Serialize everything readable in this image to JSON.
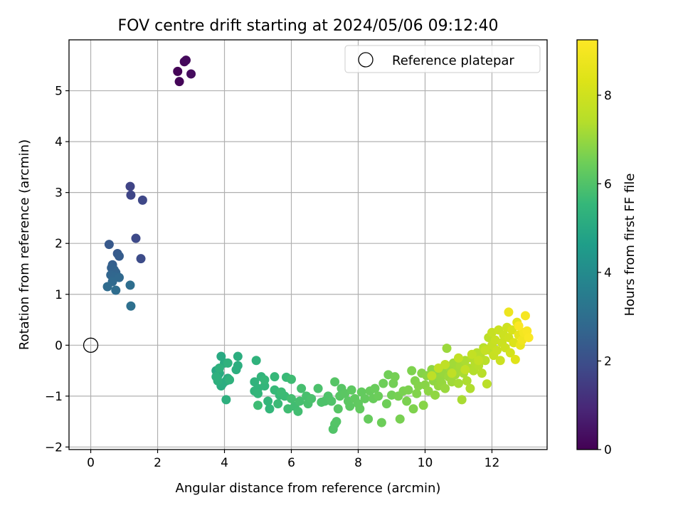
{
  "chart_data": {
    "type": "scatter",
    "title": "FOV centre drift starting at 2024/05/06 09:12:40",
    "xlabel": "Angular distance from reference (arcmin)",
    "ylabel": "Rotation from reference (arcmin)",
    "xlim": [
      -0.65,
      13.65
    ],
    "ylim": [
      -2.05,
      6.0
    ],
    "xticks": [
      0,
      2,
      4,
      6,
      8,
      10,
      12
    ],
    "xtick_labels": [
      "0",
      "2",
      "4",
      "6",
      "8",
      "10",
      "12"
    ],
    "yticks": [
      -2,
      -1,
      0,
      1,
      2,
      3,
      4,
      5
    ],
    "ytick_labels": [
      "−2",
      "−1",
      "0",
      "1",
      "2",
      "3",
      "4",
      "5"
    ],
    "grid": true,
    "legend_position": "top-right",
    "legend": [
      {
        "label": "Reference platepar",
        "marker": "open-circle"
      }
    ],
    "reference_point": {
      "x": 0,
      "y": 0
    },
    "colorbar": {
      "label": "Hours from first FF file",
      "colormap": "viridis",
      "range": [
        0,
        9.25
      ],
      "ticks": [
        0,
        2,
        4,
        6,
        8
      ],
      "tick_labels": [
        "0",
        "2",
        "4",
        "6",
        "8"
      ]
    },
    "points": [
      [
        2.6,
        5.38,
        0.05
      ],
      [
        2.65,
        5.18,
        0.1
      ],
      [
        2.8,
        5.57,
        0.15
      ],
      [
        2.85,
        5.6,
        0.2
      ],
      [
        3.0,
        5.33,
        0.25
      ],
      [
        1.18,
        3.12,
        1.7
      ],
      [
        1.2,
        2.95,
        1.75
      ],
      [
        1.55,
        2.85,
        1.8
      ],
      [
        1.35,
        2.1,
        1.85
      ],
      [
        1.5,
        1.7,
        1.9
      ],
      [
        0.55,
        1.98,
        2.3
      ],
      [
        0.8,
        1.8,
        2.35
      ],
      [
        0.85,
        1.75,
        2.4
      ],
      [
        0.65,
        1.58,
        2.5
      ],
      [
        0.62,
        1.52,
        2.55
      ],
      [
        0.7,
        1.48,
        2.6
      ],
      [
        0.75,
        1.43,
        2.65
      ],
      [
        0.6,
        1.38,
        2.7
      ],
      [
        0.72,
        1.34,
        2.75
      ],
      [
        0.85,
        1.33,
        2.8
      ],
      [
        0.65,
        1.25,
        2.85
      ],
      [
        0.5,
        1.15,
        2.9
      ],
      [
        0.75,
        1.08,
        2.95
      ],
      [
        1.18,
        1.18,
        3.0
      ],
      [
        1.2,
        0.77,
        3.05
      ],
      [
        3.75,
        -0.5,
        5.0
      ],
      [
        3.8,
        -0.6,
        5.02
      ],
      [
        3.9,
        -0.22,
        5.04
      ],
      [
        3.85,
        -0.55,
        5.06
      ],
      [
        4.0,
        -0.35,
        5.08
      ],
      [
        4.05,
        -0.7,
        5.1
      ],
      [
        4.1,
        -0.65,
        5.12
      ],
      [
        3.9,
        -0.8,
        5.14
      ],
      [
        3.95,
        -0.75,
        5.16
      ],
      [
        4.4,
        -0.22,
        5.18
      ],
      [
        4.4,
        -0.4,
        5.2
      ],
      [
        4.35,
        -0.48,
        5.22
      ],
      [
        4.05,
        -1.07,
        5.24
      ],
      [
        3.8,
        -0.7,
        5.26
      ],
      [
        3.75,
        -0.62,
        5.28
      ],
      [
        3.85,
        -0.45,
        5.3
      ],
      [
        4.1,
        -0.35,
        5.32
      ],
      [
        4.15,
        -0.68,
        5.34
      ],
      [
        4.95,
        -0.3,
        5.36
      ],
      [
        4.9,
        -0.72,
        5.38
      ],
      [
        5.0,
        -0.85,
        5.4
      ],
      [
        4.9,
        -0.9,
        5.42
      ],
      [
        5.1,
        -0.62,
        5.44
      ],
      [
        5.2,
        -0.8,
        5.46
      ],
      [
        5.0,
        -0.95,
        5.48
      ],
      [
        5.3,
        -1.1,
        5.5
      ],
      [
        5.35,
        -1.25,
        5.52
      ],
      [
        5.2,
        -0.68,
        5.54
      ],
      [
        5.5,
        -0.62,
        5.56
      ],
      [
        5.5,
        -0.88,
        5.58
      ],
      [
        5.65,
        -0.98,
        5.6
      ],
      [
        5.85,
        -0.63,
        5.62
      ],
      [
        5.6,
        -1.15,
        5.64
      ],
      [
        5.8,
        -1.0,
        5.66
      ],
      [
        5.7,
        -0.92,
        5.68
      ],
      [
        5.0,
        -1.18,
        5.7
      ],
      [
        6.0,
        -0.67,
        5.72
      ],
      [
        5.9,
        -1.25,
        5.74
      ],
      [
        6.1,
        -1.2,
        5.76
      ],
      [
        6.2,
        -1.3,
        5.78
      ],
      [
        6.0,
        -1.05,
        5.8
      ],
      [
        6.3,
        -0.85,
        5.82
      ],
      [
        6.25,
        -1.1,
        5.84
      ],
      [
        6.45,
        -1.0,
        5.86
      ],
      [
        6.5,
        -1.15,
        5.88
      ],
      [
        6.6,
        -1.05,
        5.9
      ],
      [
        6.8,
        -0.85,
        5.92
      ],
      [
        6.9,
        -1.12,
        5.94
      ],
      [
        7.0,
        -1.1,
        5.96
      ],
      [
        7.1,
        -1.0,
        5.98
      ],
      [
        7.2,
        -1.1,
        6.0
      ],
      [
        7.25,
        -1.65,
        6.02
      ],
      [
        7.3,
        -1.55,
        6.04
      ],
      [
        7.35,
        -1.5,
        6.06
      ],
      [
        7.3,
        -0.72,
        6.08
      ],
      [
        7.4,
        -1.25,
        6.1
      ],
      [
        7.5,
        -0.85,
        6.12
      ],
      [
        7.45,
        -1.0,
        6.14
      ],
      [
        7.6,
        -0.95,
        6.16
      ],
      [
        7.7,
        -1.1,
        6.18
      ],
      [
        7.75,
        -1.2,
        6.2
      ],
      [
        7.8,
        -0.88,
        6.22
      ],
      [
        7.9,
        -1.05,
        6.24
      ],
      [
        8.0,
        -1.15,
        6.26
      ],
      [
        8.05,
        -1.25,
        6.28
      ],
      [
        8.1,
        -0.92,
        6.3
      ],
      [
        8.2,
        -1.05,
        6.32
      ],
      [
        8.3,
        -1.45,
        6.34
      ],
      [
        8.35,
        -0.9,
        6.36
      ],
      [
        8.45,
        -1.05,
        6.38
      ],
      [
        8.5,
        -0.85,
        6.4
      ],
      [
        8.6,
        -1.0,
        6.42
      ],
      [
        8.7,
        -1.52,
        6.44
      ],
      [
        8.75,
        -0.75,
        6.46
      ],
      [
        8.85,
        -1.15,
        6.48
      ],
      [
        8.9,
        -0.58,
        6.5
      ],
      [
        9.0,
        -0.98,
        6.52
      ],
      [
        9.05,
        -0.75,
        6.54
      ],
      [
        9.1,
        -0.62,
        6.56
      ],
      [
        9.2,
        -1.0,
        6.58
      ],
      [
        9.25,
        -1.45,
        6.6
      ],
      [
        9.35,
        -0.9,
        6.62
      ],
      [
        9.45,
        -1.1,
        6.64
      ],
      [
        9.5,
        -0.88,
        6.66
      ],
      [
        9.6,
        -0.5,
        6.68
      ],
      [
        9.65,
        -1.25,
        6.7
      ],
      [
        9.7,
        -0.7,
        6.72
      ],
      [
        9.75,
        -0.95,
        6.74
      ],
      [
        9.8,
        -0.8,
        6.76
      ],
      [
        9.9,
        -0.55,
        6.78
      ],
      [
        9.95,
        -1.18,
        6.8
      ],
      [
        10.0,
        -0.78,
        6.82
      ],
      [
        10.05,
        -0.6,
        6.84
      ],
      [
        10.1,
        -0.9,
        6.86
      ],
      [
        10.2,
        -0.48,
        6.88
      ],
      [
        10.25,
        -0.7,
        6.9
      ],
      [
        10.3,
        -0.98,
        6.92
      ],
      [
        10.35,
        -0.58,
        6.94
      ],
      [
        10.4,
        -0.8,
        6.96
      ],
      [
        10.45,
        -0.65,
        6.98
      ],
      [
        10.5,
        -0.75,
        7.0
      ],
      [
        10.55,
        -0.55,
        7.02
      ],
      [
        10.6,
        -0.85,
        7.04
      ],
      [
        10.65,
        -0.06,
        7.06
      ],
      [
        10.7,
        -0.62,
        7.08
      ],
      [
        10.75,
        -0.45,
        7.1
      ],
      [
        10.8,
        -0.72,
        7.12
      ],
      [
        10.85,
        -0.35,
        7.14
      ],
      [
        10.9,
        -0.58,
        7.16
      ],
      [
        10.95,
        -0.5,
        7.18
      ],
      [
        11.0,
        -0.75,
        7.2
      ],
      [
        11.05,
        -0.4,
        7.22
      ],
      [
        11.1,
        -1.07,
        7.24
      ],
      [
        11.15,
        -0.55,
        7.26
      ],
      [
        11.2,
        -0.3,
        7.28
      ],
      [
        11.25,
        -0.7,
        7.3
      ],
      [
        11.3,
        -0.45,
        7.32
      ],
      [
        11.35,
        -0.85,
        7.34
      ],
      [
        11.4,
        -0.25,
        7.36
      ],
      [
        11.45,
        -0.5,
        7.38
      ],
      [
        11.5,
        -0.35,
        7.4
      ],
      [
        11.55,
        -0.15,
        7.42
      ],
      [
        11.6,
        -0.4,
        7.44
      ],
      [
        11.65,
        -0.2,
        7.46
      ],
      [
        11.7,
        -0.55,
        7.48
      ],
      [
        11.75,
        -0.05,
        7.5
      ],
      [
        11.8,
        -0.3,
        7.52
      ],
      [
        11.85,
        -0.76,
        7.54
      ],
      [
        11.9,
        0.15,
        7.56
      ],
      [
        11.95,
        -0.1,
        7.58
      ],
      [
        10.2,
        -0.6,
        7.6
      ],
      [
        10.4,
        -0.45,
        7.62
      ],
      [
        10.6,
        -0.38,
        7.64
      ],
      [
        10.8,
        -0.55,
        7.66
      ],
      [
        11.0,
        -0.25,
        7.68
      ],
      [
        11.2,
        -0.48,
        7.7
      ],
      [
        11.4,
        -0.18,
        7.72
      ],
      [
        11.6,
        -0.3,
        7.74
      ],
      [
        11.8,
        -0.1,
        7.76
      ],
      [
        12.0,
        0.0,
        7.78
      ],
      [
        12.0,
        0.25,
        7.8
      ],
      [
        12.05,
        -0.2,
        7.82
      ],
      [
        12.1,
        0.1,
        7.84
      ],
      [
        12.15,
        -0.1,
        7.86
      ],
      [
        12.2,
        0.3,
        7.88
      ],
      [
        12.25,
        -0.3,
        7.9
      ],
      [
        12.3,
        0.05,
        7.92
      ],
      [
        12.35,
        0.2,
        7.94
      ],
      [
        12.4,
        -0.05,
        7.96
      ],
      [
        12.45,
        0.35,
        7.98
      ],
      [
        12.5,
        0.15,
        8.0
      ],
      [
        12.55,
        -0.15,
        8.1
      ],
      [
        12.6,
        0.3,
        8.2
      ],
      [
        12.65,
        0.05,
        8.3
      ],
      [
        12.7,
        -0.28,
        8.4
      ],
      [
        12.75,
        0.45,
        8.5
      ],
      [
        12.8,
        0.2,
        8.6
      ],
      [
        12.85,
        0.0,
        8.7
      ],
      [
        12.5,
        0.65,
        8.8
      ],
      [
        12.9,
        0.1,
        8.9
      ],
      [
        12.95,
        0.25,
        9.0
      ],
      [
        13.0,
        0.58,
        9.05
      ],
      [
        13.05,
        0.28,
        9.1
      ],
      [
        13.1,
        0.15,
        9.15
      ],
      [
        12.8,
        0.38,
        9.2
      ]
    ]
  }
}
